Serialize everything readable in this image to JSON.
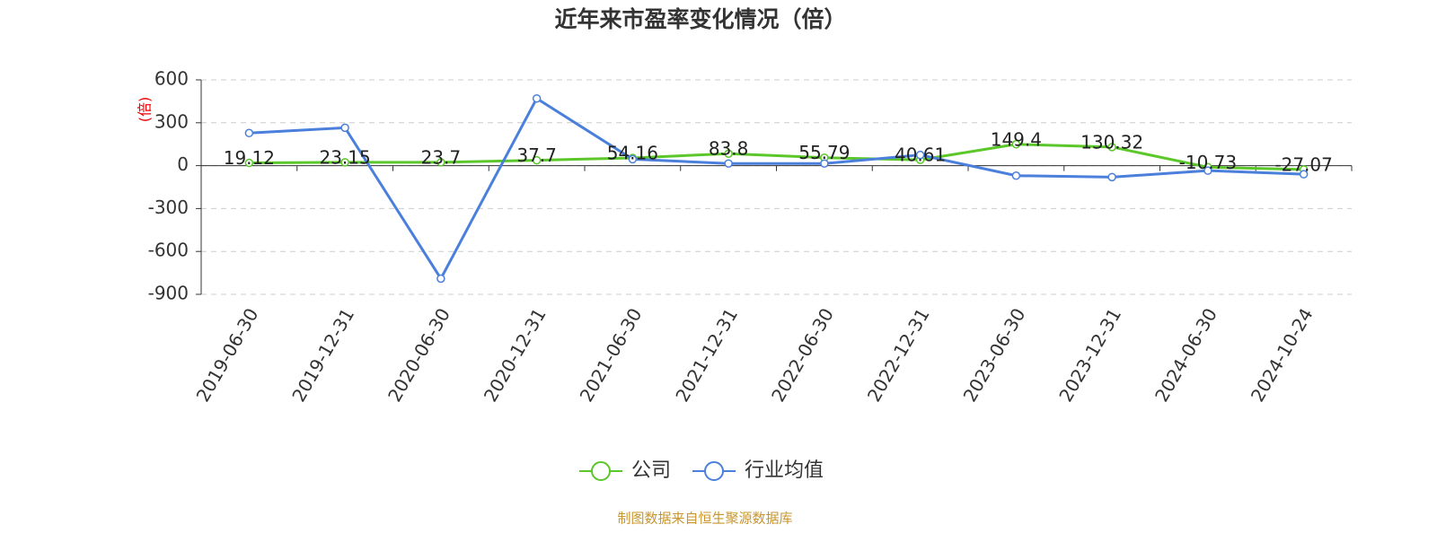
{
  "chart_data": {
    "type": "line",
    "title": "近年来市盈率变化情况（倍）",
    "y_axis_label": "(倍)",
    "source": "制图数据来自恒生聚源数据库",
    "categories": [
      "2019-06-30",
      "2019-12-31",
      "2020-06-30",
      "2020-12-31",
      "2021-06-30",
      "2021-12-31",
      "2022-06-30",
      "2022-12-31",
      "2023-06-30",
      "2023-12-31",
      "2024-06-30",
      "2024-10-24"
    ],
    "series": [
      {
        "name": "公司",
        "color": "#5bc72a",
        "values": [
          19.12,
          23.15,
          23.7,
          37.7,
          54.16,
          83.8,
          55.79,
          40.61,
          149.4,
          130.32,
          -10.73,
          -27.07
        ],
        "show_labels": true
      },
      {
        "name": "行业均值",
        "color": "#4a7fdb",
        "values": [
          228,
          265,
          -790,
          470,
          45,
          15,
          15,
          75,
          -70,
          -80,
          -35,
          -60
        ],
        "show_labels": false
      }
    ],
    "ylim": [
      -900,
      600
    ],
    "yticks": [
      -900,
      -600,
      -300,
      0,
      300,
      600
    ],
    "grid": true,
    "legend": "bottom"
  }
}
